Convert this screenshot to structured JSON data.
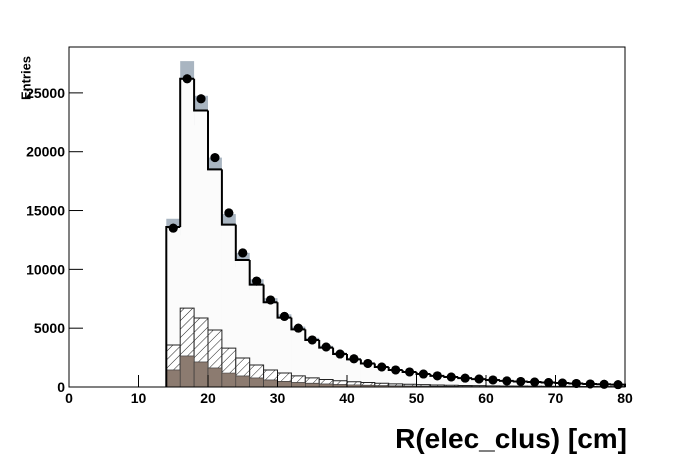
{
  "chart_data": {
    "type": "histogram",
    "x_label": "R(elec_clus) [cm]",
    "y_label": "Entries",
    "bins": [
      14,
      16,
      18,
      20,
      22,
      24,
      26,
      28,
      30,
      32,
      34,
      36,
      38,
      40,
      42,
      44,
      46,
      48,
      50,
      52,
      54,
      56,
      58,
      60,
      62,
      64,
      66,
      68,
      70,
      72,
      74,
      76,
      78,
      80
    ],
    "xlim": [
      0,
      80
    ],
    "xticks": [
      0,
      10,
      20,
      30,
      40,
      50,
      60,
      70,
      80
    ],
    "ylim": [
      0,
      28900
    ],
    "yticks": [
      0,
      5000,
      10000,
      15000,
      20000,
      25000
    ],
    "series": [
      {
        "style": "step-band",
        "color": "#000000",
        "band_color": "#a9b5c1",
        "values": [
          13600,
          26200,
          23500,
          18500,
          13800,
          10800,
          8700,
          7200,
          5900,
          4900,
          4000,
          3350,
          2800,
          2350,
          2000,
          1700,
          1450,
          1270,
          1100,
          950,
          850,
          750,
          670,
          600,
          520,
          470,
          420,
          380,
          340,
          300,
          260,
          230,
          200
        ],
        "errors": [
          700,
          1500,
          1250,
          1000,
          900,
          600,
          450,
          350,
          280,
          230,
          180,
          150,
          120,
          100,
          90,
          80,
          70,
          60,
          50,
          45,
          40,
          35,
          30,
          28,
          25,
          22,
          20,
          18,
          16,
          15,
          14,
          12,
          10
        ]
      },
      {
        "style": "hatch",
        "color": "#222222",
        "values": [
          3570,
          6700,
          5870,
          4850,
          3300,
          2470,
          1870,
          1450,
          1190,
          950,
          780,
          640,
          530,
          450,
          380,
          320,
          270,
          230,
          200,
          170,
          150,
          130,
          115,
          100,
          90,
          80,
          70,
          62,
          55,
          48,
          42,
          37,
          33
        ]
      },
      {
        "style": "fill",
        "color": "#8c7b70",
        "values": [
          1450,
          2640,
          2130,
          1620,
          1190,
          940,
          770,
          600,
          480,
          390,
          320,
          260,
          215,
          180,
          150,
          125,
          105,
          90,
          78,
          67,
          58,
          50,
          44,
          38,
          33,
          29,
          25,
          22,
          19,
          17,
          15,
          13,
          11
        ]
      },
      {
        "style": "points",
        "color": "#000000",
        "values": [
          13500,
          26200,
          24500,
          19500,
          14800,
          11400,
          9000,
          7400,
          6000,
          5000,
          4000,
          3400,
          2800,
          2400,
          2000,
          1700,
          1450,
          1280,
          1100,
          950,
          850,
          750,
          680,
          600,
          520,
          470,
          420,
          380,
          340,
          300,
          260,
          230,
          200
        ]
      }
    ]
  }
}
